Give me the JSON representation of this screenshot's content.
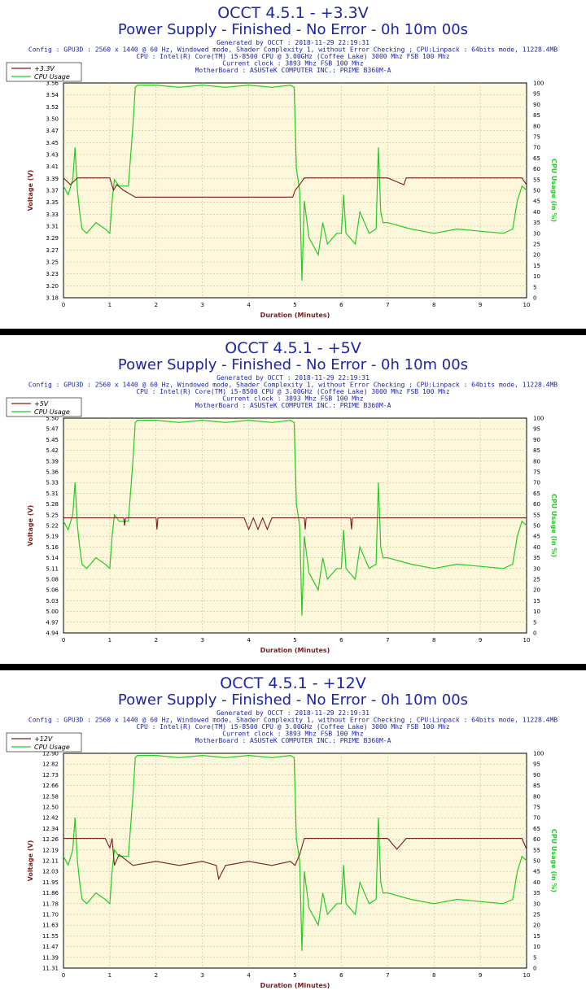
{
  "colors": {
    "voltage": "#7a1d1d",
    "cpu": "#22cc22",
    "title": "#1b25a6",
    "plot_bg": "#fdf7dc",
    "grid": "#c8c090"
  },
  "chart_data": [
    {
      "type": "line",
      "title": "OCCT 4.5.1 - +3.3V",
      "subtitle": "Power Supply - Finished - No Error - 0h 10m 00s",
      "info": [
        "Generated by OCCT : 2018-11-29 22:19:31",
        "Config : GPU3D : 2560 x 1440 @ 60 Hz, Windowed mode, Shader Complexity 1, without Error Checking ; CPU:Linpack : 64bits mode, 11228.4MB",
        "CPU : Intel(R) Core(TM) i5-8500 CPU @ 3.00GHz (Coffee Lake) 3000 Mhz FSB 100 Mhz",
        "Current clock : 3893 Mhz FSB 100 Mhz",
        "MotherBoard : ASUSTeK COMPUTER INC.: PRIME B360M-A"
      ],
      "xlabel": "Duration (Minutes)",
      "ylabel": "Voltage (V)",
      "y2label": "CPU Usage (in %)",
      "xlim": [
        0,
        10
      ],
      "xticks": [
        "0",
        "1",
        "2",
        "3",
        "4",
        "5",
        "6",
        "7",
        "8",
        "9",
        "10"
      ],
      "yticks": [
        "3.18",
        "3.20",
        "3.23",
        "3.25",
        "3.27",
        "3.29",
        "3.31",
        "3.33",
        "3.35",
        "3.37",
        "3.39",
        "3.41",
        "3.43",
        "3.45",
        "3.47",
        "3.50",
        "3.52",
        "3.54",
        "3.56"
      ],
      "y2ticks": [
        "0",
        "5",
        "10",
        "15",
        "20",
        "25",
        "30",
        "35",
        "40",
        "45",
        "50",
        "55",
        "60",
        "65",
        "70",
        "75",
        "80",
        "85",
        "90",
        "95",
        "100"
      ],
      "legend": [
        "+3.3V",
        "CPU Usage"
      ],
      "legend_position": "top-left",
      "grid": true,
      "voltage": {
        "name": "+3.3V",
        "x": [
          0,
          0.15,
          0.3,
          0.55,
          1.0,
          1.08,
          1.15,
          1.3,
          1.55,
          2.2,
          2.5,
          3.0,
          3.5,
          4.0,
          4.5,
          4.95,
          5.0,
          5.1,
          5.2,
          5.5,
          5.8,
          6.1,
          6.5,
          7.0,
          7.35,
          7.4,
          8.0,
          8.5,
          9.0,
          9.5,
          9.9,
          10.0
        ],
        "values": [
          3.392,
          3.38,
          3.392,
          3.392,
          3.392,
          3.37,
          3.38,
          3.37,
          3.358,
          3.358,
          3.358,
          3.358,
          3.358,
          3.358,
          3.358,
          3.358,
          3.37,
          3.38,
          3.392,
          3.392,
          3.392,
          3.392,
          3.392,
          3.392,
          3.38,
          3.392,
          3.392,
          3.392,
          3.392,
          3.392,
          3.392,
          3.38
        ]
      },
      "cpu": {
        "name": "CPU Usage",
        "x": [
          0,
          0.1,
          0.2,
          0.25,
          0.3,
          0.35,
          0.4,
          0.5,
          0.7,
          0.9,
          1.0,
          1.05,
          1.1,
          1.2,
          1.4,
          1.5,
          1.55,
          1.6,
          2.0,
          2.5,
          3.0,
          3.5,
          4.0,
          4.5,
          4.9,
          4.98,
          5.03,
          5.1,
          5.15,
          5.2,
          5.3,
          5.5,
          5.6,
          5.7,
          5.9,
          6.0,
          6.05,
          6.1,
          6.3,
          6.4,
          6.6,
          6.75,
          6.8,
          6.85,
          6.9,
          7.0,
          7.5,
          8.0,
          8.5,
          9.0,
          9.5,
          9.7,
          9.8,
          9.9,
          10.0
        ],
        "values": [
          52,
          48,
          55,
          70,
          50,
          40,
          32,
          30,
          35,
          32,
          30,
          45,
          55,
          52,
          52,
          80,
          98,
          99,
          99,
          98,
          99,
          98,
          99,
          98,
          99,
          98,
          60,
          50,
          8,
          45,
          28,
          20,
          35,
          25,
          30,
          30,
          48,
          30,
          25,
          40,
          30,
          32,
          70,
          40,
          35,
          35,
          32,
          30,
          32,
          31,
          30,
          32,
          45,
          52,
          50
        ]
      }
    },
    {
      "type": "line",
      "title": "OCCT 4.5.1 - +5V",
      "subtitle": "Power Supply - Finished - No Error - 0h 10m 00s",
      "info": [
        "Generated by OCCT : 2018-11-29 22:19:31",
        "Config : GPU3D : 2560 x 1440 @ 60 Hz, Windowed mode, Shader Complexity 1, without Error Checking ; CPU:Linpack : 64bits mode, 11228.4MB",
        "CPU : Intel(R) Core(TM) i5-8500 CPU @ 3.00GHz (Coffee Lake) 3000 Mhz FSB 100 Mhz",
        "Current clock : 3893 Mhz FSB 100 Mhz",
        "MotherBoard : ASUSTeK COMPUTER INC.: PRIME B360M-A"
      ],
      "xlabel": "Duration (Minutes)",
      "ylabel": "Voltage (V)",
      "y2label": "CPU Usage (in %)",
      "xlim": [
        0,
        10
      ],
      "xticks": [
        "0",
        "1",
        "2",
        "3",
        "4",
        "5",
        "6",
        "7",
        "8",
        "9",
        "10"
      ],
      "yticks": [
        "4.94",
        "4.97",
        "5.00",
        "5.03",
        "5.06",
        "5.08",
        "5.11",
        "5.14",
        "5.16",
        "5.19",
        "5.22",
        "5.25",
        "5.28",
        "5.31",
        "5.33",
        "5.36",
        "5.39",
        "5.42",
        "5.45",
        "5.47",
        "5.50"
      ],
      "y2ticks": [
        "0",
        "5",
        "10",
        "15",
        "20",
        "25",
        "30",
        "35",
        "40",
        "45",
        "50",
        "55",
        "60",
        "65",
        "70",
        "75",
        "80",
        "85",
        "90",
        "95",
        "100"
      ],
      "legend": [
        "+5V",
        "CPU Usage"
      ],
      "legend_position": "top-left",
      "grid": true,
      "voltage": {
        "name": "+5V",
        "x": [
          0,
          0.5,
          1.0,
          1.3,
          1.32,
          1.34,
          2.0,
          2.02,
          2.04,
          3.0,
          3.9,
          4.0,
          4.1,
          4.2,
          4.3,
          4.4,
          4.5,
          5.0,
          5.2,
          5.22,
          5.24,
          5.5,
          6.0,
          6.2,
          6.22,
          6.24,
          7.0,
          8.0,
          9.0,
          10.0
        ],
        "values": [
          5.24,
          5.24,
          5.24,
          5.24,
          5.22,
          5.24,
          5.24,
          5.21,
          5.24,
          5.24,
          5.24,
          5.21,
          5.24,
          5.21,
          5.24,
          5.21,
          5.24,
          5.24,
          5.24,
          5.21,
          5.24,
          5.24,
          5.24,
          5.24,
          5.21,
          5.24,
          5.24,
          5.24,
          5.24,
          5.24
        ]
      },
      "cpu": {
        "name": "CPU Usage",
        "x": [
          0,
          0.1,
          0.2,
          0.25,
          0.3,
          0.35,
          0.4,
          0.5,
          0.7,
          0.9,
          1.0,
          1.05,
          1.1,
          1.2,
          1.4,
          1.5,
          1.55,
          1.6,
          2.0,
          2.5,
          3.0,
          3.5,
          4.0,
          4.5,
          4.9,
          4.98,
          5.03,
          5.1,
          5.15,
          5.2,
          5.3,
          5.5,
          5.6,
          5.7,
          5.9,
          6.0,
          6.05,
          6.1,
          6.3,
          6.4,
          6.6,
          6.75,
          6.8,
          6.85,
          6.9,
          7.0,
          7.5,
          8.0,
          8.5,
          9.0,
          9.5,
          9.7,
          9.8,
          9.9,
          10.0
        ],
        "values": [
          52,
          48,
          55,
          70,
          50,
          40,
          32,
          30,
          35,
          32,
          30,
          45,
          55,
          52,
          52,
          80,
          98,
          99,
          99,
          98,
          99,
          98,
          99,
          98,
          99,
          98,
          60,
          50,
          8,
          45,
          28,
          20,
          35,
          25,
          30,
          30,
          48,
          30,
          25,
          40,
          30,
          32,
          70,
          40,
          35,
          35,
          32,
          30,
          32,
          31,
          30,
          32,
          45,
          52,
          50
        ]
      }
    },
    {
      "type": "line",
      "title": "OCCT 4.5.1 - +12V",
      "subtitle": "Power Supply - Finished - No Error - 0h 10m 00s",
      "info": [
        "Generated by OCCT : 2018-11-29 22:19:31",
        "Config : GPU3D : 2560 x 1440 @ 60 Hz, Windowed mode, Shader Complexity 1, without Error Checking ; CPU:Linpack : 64bits mode, 11228.4MB",
        "CPU : Intel(R) Core(TM) i5-8500 CPU @ 3.00GHz (Coffee Lake) 3000 Mhz FSB 100 Mhz",
        "Current clock : 3893 Mhz FSB 100 Mhz",
        "MotherBoard : ASUSTeK COMPUTER INC.: PRIME B360M-A"
      ],
      "xlabel": "Duration (Minutes)",
      "ylabel": "Voltage (V)",
      "y2label": "CPU Usage (in %)",
      "xlim": [
        0,
        10
      ],
      "xticks": [
        "0",
        "1",
        "2",
        "3",
        "4",
        "5",
        "6",
        "7",
        "8",
        "9",
        "10"
      ],
      "yticks": [
        "11.31",
        "11.39",
        "11.47",
        "11.55",
        "11.63",
        "11.70",
        "11.78",
        "11.86",
        "11.95",
        "12.03",
        "12.11",
        "12.19",
        "12.26",
        "12.34",
        "12.42",
        "12.50",
        "12.58",
        "12.66",
        "12.73",
        "12.82",
        "12.90"
      ],
      "y2ticks": [
        "0",
        "5",
        "10",
        "15",
        "20",
        "25",
        "30",
        "35",
        "40",
        "45",
        "50",
        "55",
        "60",
        "65",
        "70",
        "75",
        "80",
        "85",
        "90",
        "95",
        "100"
      ],
      "legend": [
        "+12V",
        "CPU Usage"
      ],
      "legend_position": "top-left",
      "grid": true,
      "voltage": {
        "name": "+12V",
        "x": [
          0,
          0.5,
          0.9,
          1.0,
          1.05,
          1.1,
          1.2,
          1.5,
          2.0,
          2.5,
          3.0,
          3.3,
          3.35,
          3.5,
          4.0,
          4.5,
          4.9,
          5.0,
          5.1,
          5.2,
          5.5,
          6.0,
          6.5,
          7.0,
          7.2,
          7.4,
          8.0,
          8.5,
          9.0,
          9.5,
          9.9,
          10.0
        ],
        "values": [
          12.27,
          12.27,
          12.27,
          12.2,
          12.27,
          12.07,
          12.15,
          12.07,
          12.1,
          12.07,
          12.1,
          12.07,
          11.97,
          12.07,
          12.1,
          12.07,
          12.1,
          12.07,
          12.15,
          12.27,
          12.27,
          12.27,
          12.27,
          12.27,
          12.19,
          12.27,
          12.27,
          12.27,
          12.27,
          12.27,
          12.27,
          12.19
        ]
      },
      "cpu": {
        "name": "CPU Usage",
        "x": [
          0,
          0.1,
          0.2,
          0.25,
          0.3,
          0.35,
          0.4,
          0.5,
          0.7,
          0.9,
          1.0,
          1.05,
          1.1,
          1.2,
          1.4,
          1.5,
          1.55,
          1.6,
          2.0,
          2.5,
          3.0,
          3.5,
          4.0,
          4.5,
          4.9,
          4.98,
          5.03,
          5.1,
          5.15,
          5.2,
          5.3,
          5.5,
          5.6,
          5.7,
          5.9,
          6.0,
          6.05,
          6.1,
          6.3,
          6.4,
          6.6,
          6.75,
          6.8,
          6.85,
          6.9,
          7.0,
          7.5,
          8.0,
          8.5,
          9.0,
          9.5,
          9.7,
          9.8,
          9.9,
          10.0
        ],
        "values": [
          52,
          48,
          55,
          70,
          50,
          40,
          32,
          30,
          35,
          32,
          30,
          45,
          55,
          52,
          52,
          80,
          98,
          99,
          99,
          98,
          99,
          98,
          99,
          98,
          99,
          98,
          60,
          50,
          8,
          45,
          28,
          20,
          35,
          25,
          30,
          30,
          48,
          30,
          25,
          40,
          30,
          32,
          70,
          40,
          35,
          35,
          32,
          30,
          32,
          31,
          30,
          32,
          45,
          52,
          50
        ]
      }
    }
  ]
}
